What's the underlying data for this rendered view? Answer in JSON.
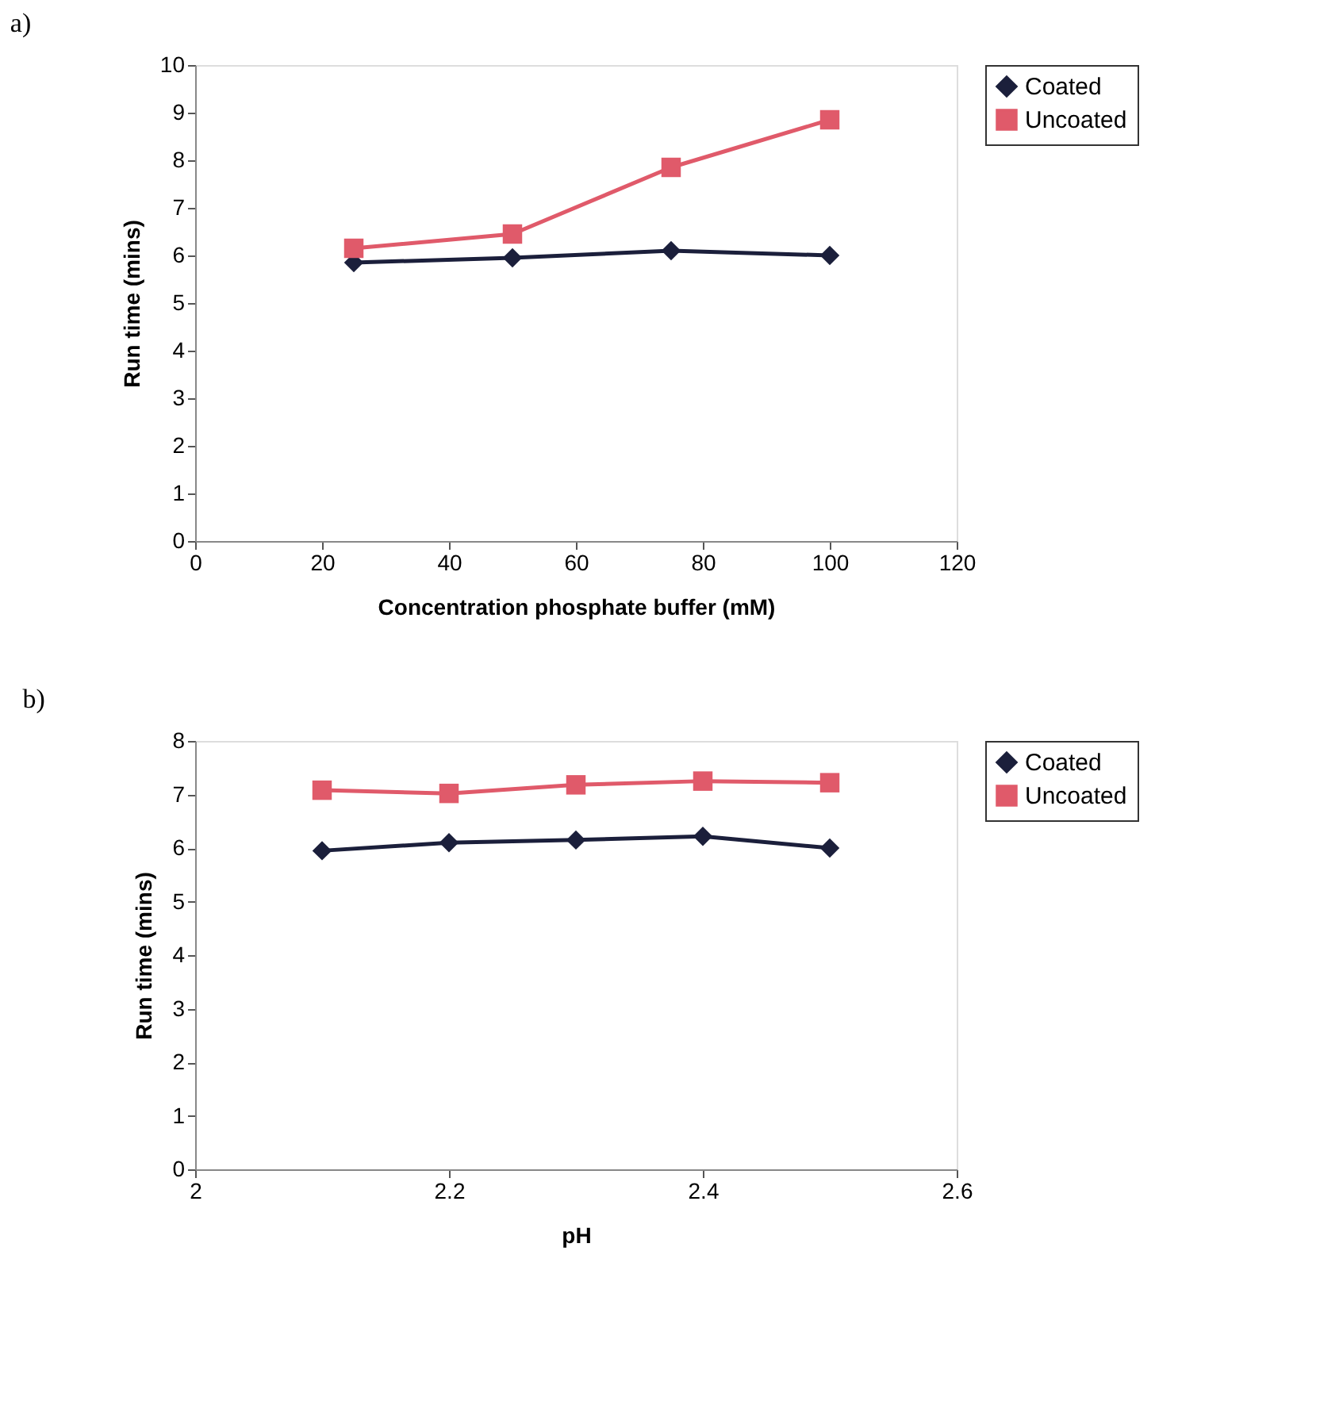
{
  "chart_data": [
    {
      "type": "line",
      "title": "a)",
      "xlabel": "Concentration phosphate buffer (mM)",
      "ylabel": "Run time (mins)",
      "x": [
        25,
        50,
        75,
        100
      ],
      "xlim": [
        0,
        120
      ],
      "xticks": [
        0,
        20,
        40,
        60,
        80,
        100,
        120
      ],
      "ylim": [
        0,
        10
      ],
      "yticks": [
        0,
        1,
        2,
        3,
        4,
        5,
        6,
        7,
        8,
        9,
        10
      ],
      "grid": false,
      "legend": "right",
      "line_style": "solid",
      "series": [
        {
          "name": "Coated",
          "color": "#1b1f3b",
          "marker": "diamond",
          "values": [
            5.85,
            5.95,
            6.1,
            6.0
          ]
        },
        {
          "name": "Uncoated",
          "color": "#e05a6a",
          "marker": "square",
          "values": [
            6.15,
            6.45,
            7.85,
            8.85
          ]
        }
      ]
    },
    {
      "type": "line",
      "title": "b)",
      "xlabel": "pH",
      "ylabel": "Run time (mins)",
      "x": [
        2.1,
        2.2,
        2.3,
        2.4,
        2.5
      ],
      "xlim": [
        2,
        2.6
      ],
      "xticks": [
        2,
        2.2,
        2.4,
        2.6
      ],
      "ylim": [
        0,
        8
      ],
      "yticks": [
        0,
        1,
        2,
        3,
        4,
        5,
        6,
        7,
        8
      ],
      "grid": false,
      "legend": "right",
      "line_style": "solid",
      "series": [
        {
          "name": "Coated",
          "color": "#1b1f3b",
          "marker": "diamond",
          "values": [
            5.95,
            6.1,
            6.15,
            6.22,
            6.0
          ]
        },
        {
          "name": "Uncoated",
          "color": "#e05a6a",
          "marker": "square",
          "values": [
            7.08,
            7.02,
            7.18,
            7.25,
            7.22
          ]
        }
      ]
    }
  ]
}
